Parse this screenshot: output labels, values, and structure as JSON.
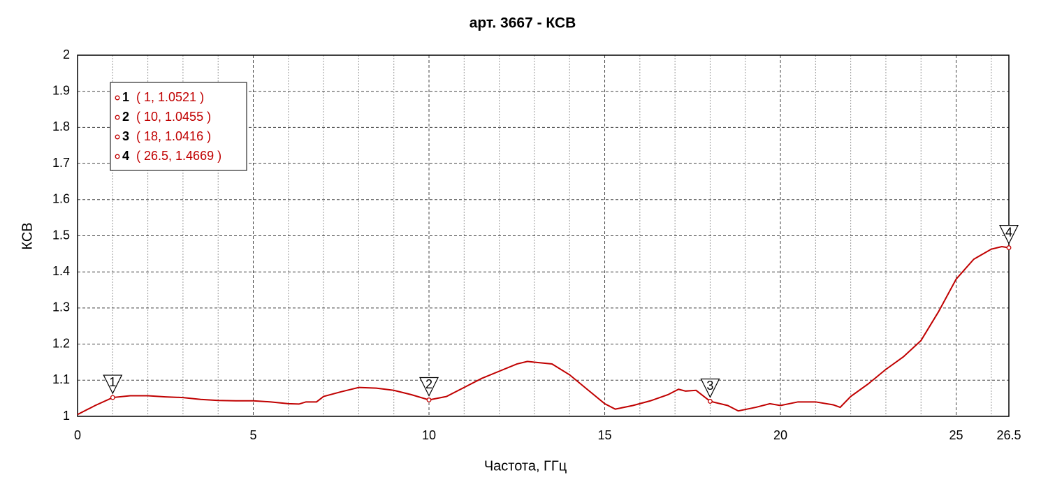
{
  "chart_data": {
    "type": "line",
    "title": "арт. 3667 - КСВ",
    "xlabel": "Частота, ГГц",
    "ylabel": "КСВ",
    "x": [
      0,
      0.5,
      1,
      1.5,
      2,
      2.5,
      3,
      3.5,
      4,
      4.5,
      5,
      5.5,
      6,
      6.3,
      6.5,
      6.8,
      7,
      7.5,
      8,
      8.5,
      9,
      9.5,
      10,
      10.5,
      11,
      11.5,
      12,
      12.5,
      12.8,
      13,
      13.5,
      14,
      14.5,
      15,
      15.3,
      15.8,
      16.3,
      16.8,
      17.1,
      17.3,
      17.6,
      18,
      18.5,
      18.8,
      19.3,
      19.7,
      20,
      20.5,
      21,
      21.5,
      21.7,
      22,
      22.5,
      23,
      23.5,
      24,
      24.5,
      25,
      25.5,
      26,
      26.3,
      26.5
    ],
    "values": [
      1.005,
      1.03,
      1.0521,
      1.057,
      1.057,
      1.054,
      1.052,
      1.047,
      1.044,
      1.043,
      1.043,
      1.04,
      1.035,
      1.034,
      1.04,
      1.04,
      1.055,
      1.068,
      1.08,
      1.078,
      1.072,
      1.06,
      1.0455,
      1.055,
      1.08,
      1.105,
      1.125,
      1.145,
      1.152,
      1.15,
      1.145,
      1.115,
      1.075,
      1.035,
      1.02,
      1.03,
      1.043,
      1.06,
      1.075,
      1.07,
      1.072,
      1.0416,
      1.03,
      1.015,
      1.025,
      1.035,
      1.03,
      1.04,
      1.04,
      1.032,
      1.025,
      1.055,
      1.09,
      1.13,
      1.165,
      1.21,
      1.29,
      1.38,
      1.435,
      1.463,
      1.47,
      1.4669
    ],
    "color": "#c00000",
    "xlim": [
      0,
      26.5
    ],
    "ylim": [
      1,
      2
    ],
    "xticks": [
      0,
      5,
      10,
      15,
      20,
      25,
      26.5
    ],
    "minor_xticks": [
      1,
      2,
      3,
      4,
      6,
      7,
      8,
      9,
      11,
      12,
      13,
      14,
      16,
      17,
      18,
      19,
      21,
      22,
      23,
      24,
      26
    ],
    "yticks": [
      1,
      1.1,
      1.2,
      1.3,
      1.4,
      1.5,
      1.6,
      1.7,
      1.8,
      1.9,
      2
    ],
    "grid": true,
    "markers": [
      {
        "label": "1",
        "x": 1,
        "y": 1.0521,
        "text": "( 1, 1.0521 )"
      },
      {
        "label": "2",
        "x": 10,
        "y": 1.0455,
        "text": "( 10, 1.0455 )"
      },
      {
        "label": "3",
        "x": 18,
        "y": 1.0416,
        "text": "( 18, 1.0416 )"
      },
      {
        "label": "4",
        "x": 26.5,
        "y": 1.4669,
        "text": "( 26.5, 1.4669 )"
      }
    ]
  }
}
